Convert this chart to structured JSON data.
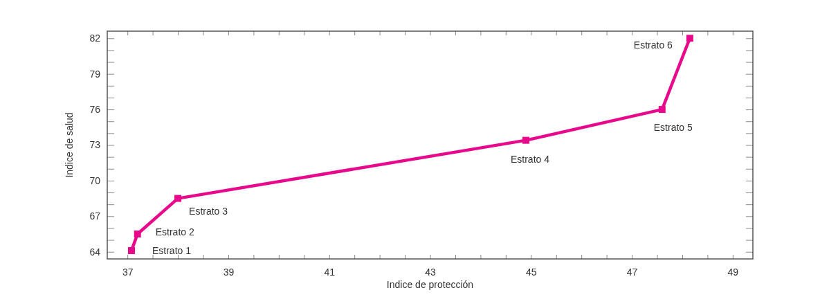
{
  "chart_data": {
    "type": "line",
    "xlabel": "Indice de protección",
    "ylabel": "Indice de salud",
    "x": [
      37.08,
      37.2,
      38.0,
      44.9,
      47.6,
      48.15
    ],
    "series": [
      {
        "color": "#e8088c",
        "values": [
          64.1,
          65.5,
          68.5,
          73.4,
          76.0,
          82.0
        ]
      }
    ],
    "marker": "square",
    "line_style": "solid",
    "grid": false,
    "xlim": [
      36.6,
      49.4
    ],
    "ylim": [
      63.4,
      82.6
    ],
    "xticks": [
      37,
      {
        "value": 37.5,
        "label": null
      },
      {
        "value": 38,
        "label": null
      },
      {
        "value": 38.5,
        "label": null
      },
      39,
      {
        "value": 39.5,
        "label": null
      },
      {
        "value": 40,
        "label": null
      },
      {
        "value": 40.5,
        "label": null
      },
      41,
      {
        "value": 41.5,
        "label": null
      },
      {
        "value": 42,
        "label": null
      },
      {
        "value": 42.5,
        "label": null
      },
      43,
      {
        "value": 43.5,
        "label": null
      },
      {
        "value": 44,
        "label": null
      },
      {
        "value": 44.5,
        "label": null
      },
      45,
      {
        "value": 45.5,
        "label": null
      },
      {
        "value": 46,
        "label": null
      },
      {
        "value": 46.5,
        "label": null
      },
      47,
      {
        "value": 47.5,
        "label": null
      },
      {
        "value": 48,
        "label": null
      },
      {
        "value": 48.5,
        "label": null
      },
      49
    ],
    "yticks": [
      64,
      {
        "value": 65,
        "label": null
      },
      {
        "value": 66,
        "label": null
      },
      67,
      {
        "value": 68,
        "label": null
      },
      {
        "value": 69,
        "label": null
      },
      70,
      {
        "value": 71,
        "label": null
      },
      {
        "value": 72,
        "label": null
      },
      73,
      {
        "value": 74,
        "label": null
      },
      {
        "value": 75,
        "label": null
      },
      76,
      {
        "value": 77,
        "label": null
      },
      {
        "value": 78,
        "label": null
      },
      79,
      {
        "value": 80,
        "label": null
      },
      {
        "value": 81,
        "label": null
      },
      82
    ],
    "annotations": [
      {
        "text": "Estrato 1",
        "x": 37.08,
        "y": 64.1
      },
      {
        "text": "Estrato 2",
        "x": 37.2,
        "y": 65.5
      },
      {
        "text": "Estrato 3",
        "x": 38.0,
        "y": 68.5
      },
      {
        "text": "Estrato 4",
        "x": 44.9,
        "y": 73.4
      },
      {
        "text": "Estrato 5",
        "x": 47.6,
        "y": 76.0
      },
      {
        "text": "Estrato 6",
        "x": 48.15,
        "y": 82.0
      }
    ]
  }
}
